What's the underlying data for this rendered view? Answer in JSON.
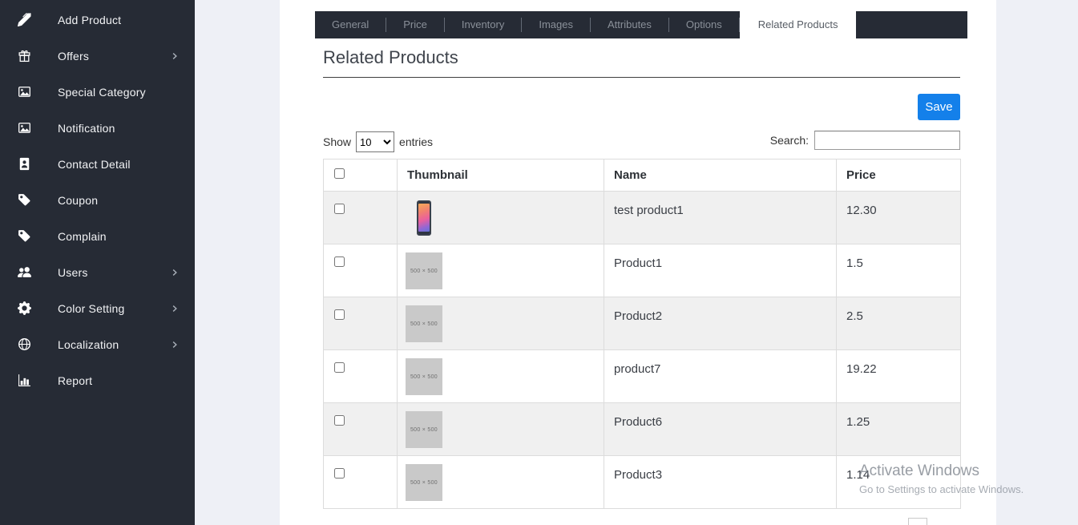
{
  "colors": {
    "accent": "#1480ea",
    "sidebar_bg": "#262b35",
    "stripe": "#f0f0f0"
  },
  "sidebar": {
    "items": [
      {
        "label": "Add Product",
        "icon": "pen",
        "chevron": false
      },
      {
        "label": "Offers",
        "icon": "gift",
        "chevron": true
      },
      {
        "label": "Special Category",
        "icon": "image",
        "chevron": false
      },
      {
        "label": "Notification",
        "icon": "image",
        "chevron": false
      },
      {
        "label": "Contact Detail",
        "icon": "address-book",
        "chevron": false
      },
      {
        "label": "Coupon",
        "icon": "tag",
        "chevron": false
      },
      {
        "label": "Complain",
        "icon": "tag",
        "chevron": false
      },
      {
        "label": "Users",
        "icon": "users",
        "chevron": true
      },
      {
        "label": "Color Setting",
        "icon": "gear",
        "chevron": true
      },
      {
        "label": "Localization",
        "icon": "globe",
        "chevron": true
      },
      {
        "label": "Report",
        "icon": "bar-chart",
        "chevron": false
      }
    ]
  },
  "tabs": [
    {
      "label": "General",
      "active": false
    },
    {
      "label": "Price",
      "active": false
    },
    {
      "label": "Inventory",
      "active": false
    },
    {
      "label": "Images",
      "active": false
    },
    {
      "label": "Attributes",
      "active": false
    },
    {
      "label": "Options",
      "active": false
    },
    {
      "label": "Related Products",
      "active": true
    }
  ],
  "page": {
    "title": "Related Products"
  },
  "toolbar": {
    "save_label": "Save"
  },
  "table_controls": {
    "show_label": "Show",
    "page_size": "10",
    "entries_label": "entries",
    "search_label": "Search:",
    "search_value": ""
  },
  "table": {
    "headers": [
      "Thumbnail",
      "Name",
      "Price"
    ],
    "placeholder_text": "500 × 500",
    "rows": [
      {
        "name": "test product1",
        "price": "12.30",
        "thumb": "phone"
      },
      {
        "name": "Product1",
        "price": "1.5",
        "thumb": "placeholder"
      },
      {
        "name": "Product2",
        "price": "2.5",
        "thumb": "placeholder"
      },
      {
        "name": "product7",
        "price": "19.22",
        "thumb": "placeholder"
      },
      {
        "name": "Product6",
        "price": "1.25",
        "thumb": "placeholder"
      },
      {
        "name": "Product3",
        "price": "1.14",
        "thumb": "placeholder"
      }
    ]
  },
  "watermark": {
    "line1": "Activate Windows",
    "line2": "Go to Settings to activate Windows."
  }
}
